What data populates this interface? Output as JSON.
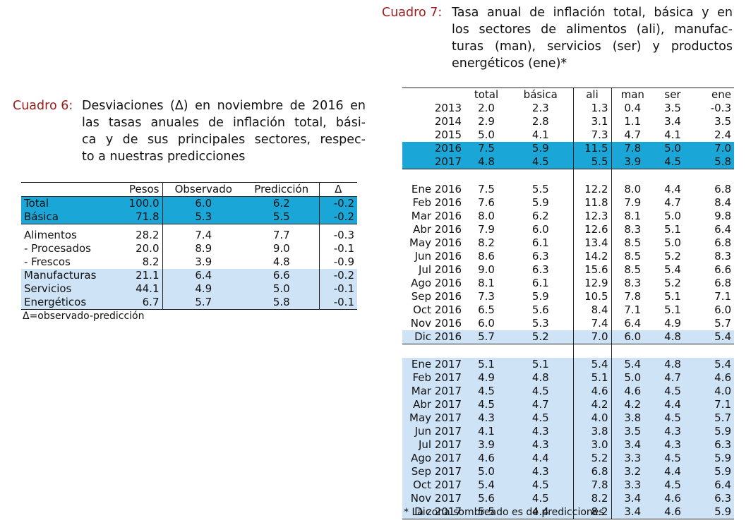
{
  "cuadro6": {
    "label": "Cuadro 6:",
    "title_lines": [
      "Desviaciones (Δ) en noviembre de 2016 en",
      "las tasas anuales de inflación total, bási-",
      "ca y de sus principales sectores, respec-",
      "to a nuestras predicciones"
    ],
    "headers": [
      "",
      "Pesos",
      "Observado",
      "Predicción",
      "Δ"
    ],
    "rows": [
      {
        "name": "Total",
        "cells": [
          "100.0",
          "6.0",
          "6.2",
          "-0.2"
        ],
        "shade": "dark"
      },
      {
        "name": "Básica",
        "cells": [
          "71.8",
          "5.3",
          "5.5",
          "-0.2"
        ],
        "shade": "dark"
      },
      {
        "name": "Alimentos",
        "cells": [
          "28.2",
          "7.4",
          "7.7",
          "-0.3"
        ],
        "shade": "none"
      },
      {
        "name": "- Procesados",
        "cells": [
          "20.0",
          "8.9",
          "9.0",
          "-0.1"
        ],
        "shade": "none"
      },
      {
        "name": "- Frescos",
        "cells": [
          "8.2",
          "3.9",
          "4.8",
          "-0.9"
        ],
        "shade": "none"
      },
      {
        "name": "Manufacturas",
        "cells": [
          "21.1",
          "6.4",
          "6.6",
          "-0.2"
        ],
        "shade": "light"
      },
      {
        "name": "Servicios",
        "cells": [
          "44.1",
          "4.9",
          "5.0",
          "-0.1"
        ],
        "shade": "light"
      },
      {
        "name": "Energéticos",
        "cells": [
          "6.7",
          "5.7",
          "5.8",
          "-0.1"
        ],
        "shade": "light"
      }
    ],
    "footnote": "Δ=observado-predicción"
  },
  "cuadro7": {
    "label": "Cuadro 7:",
    "title_lines": [
      "Tasa anual de inflación total, básica y en",
      "los sectores de alimentos (ali), manufac-",
      "turas (man), servicios (ser) y productos",
      "energéticos (ene)*"
    ],
    "headers": [
      "",
      "total",
      "básica",
      "ali",
      "man",
      "ser",
      "ene"
    ],
    "annual": [
      {
        "name": "2013",
        "cells": [
          "2.0",
          "2.3",
          "1.3",
          "0.4",
          "3.5",
          "-0.3"
        ],
        "shade": "none"
      },
      {
        "name": "2014",
        "cells": [
          "2.9",
          "2.8",
          "3.1",
          "1.1",
          "3.4",
          "3.5"
        ],
        "shade": "none"
      },
      {
        "name": "2015",
        "cells": [
          "5.0",
          "4.1",
          "7.3",
          "4.7",
          "4.1",
          "2.4"
        ],
        "shade": "none"
      },
      {
        "name": "2016",
        "cells": [
          "7.5",
          "5.9",
          "11.5",
          "7.8",
          "5.0",
          "7.0"
        ],
        "shade": "dark"
      },
      {
        "name": "2017",
        "cells": [
          "4.8",
          "4.5",
          "5.5",
          "3.9",
          "4.5",
          "5.8"
        ],
        "shade": "dark"
      }
    ],
    "monthly2016": [
      {
        "name": "Ene 2016",
        "cells": [
          "7.5",
          "5.5",
          "12.2",
          "8.0",
          "4.4",
          "6.8"
        ],
        "shade": "none"
      },
      {
        "name": "Feb 2016",
        "cells": [
          "7.6",
          "5.9",
          "11.8",
          "7.9",
          "4.7",
          "8.4"
        ],
        "shade": "none"
      },
      {
        "name": "Mar 2016",
        "cells": [
          "8.0",
          "6.2",
          "12.3",
          "8.1",
          "5.0",
          "9.8"
        ],
        "shade": "none"
      },
      {
        "name": "Abr 2016",
        "cells": [
          "7.9",
          "6.0",
          "12.6",
          "8.3",
          "5.1",
          "6.4"
        ],
        "shade": "none"
      },
      {
        "name": "May 2016",
        "cells": [
          "8.2",
          "6.1",
          "13.4",
          "8.5",
          "5.0",
          "6.8"
        ],
        "shade": "none"
      },
      {
        "name": "Jun 2016",
        "cells": [
          "8.6",
          "6.3",
          "14.2",
          "8.5",
          "5.2",
          "8.3"
        ],
        "shade": "none"
      },
      {
        "name": "Jul 2016",
        "cells": [
          "9.0",
          "6.3",
          "15.6",
          "8.5",
          "5.4",
          "6.6"
        ],
        "shade": "none"
      },
      {
        "name": "Ago 2016",
        "cells": [
          "8.1",
          "6.1",
          "12.9",
          "8.3",
          "5.2",
          "6.8"
        ],
        "shade": "none"
      },
      {
        "name": "Sep 2016",
        "cells": [
          "7.3",
          "5.9",
          "10.5",
          "7.8",
          "5.1",
          "7.1"
        ],
        "shade": "none"
      },
      {
        "name": "Oct 2016",
        "cells": [
          "6.5",
          "5.6",
          "8.4",
          "7.1",
          "5.1",
          "6.0"
        ],
        "shade": "none"
      },
      {
        "name": "Nov 2016",
        "cells": [
          "6.0",
          "5.3",
          "7.4",
          "6.4",
          "4.9",
          "5.7"
        ],
        "shade": "none"
      },
      {
        "name": "Dic 2016",
        "cells": [
          "5.7",
          "5.2",
          "7.0",
          "6.0",
          "4.8",
          "5.4"
        ],
        "shade": "light"
      }
    ],
    "monthly2017": [
      {
        "name": "Ene 2017",
        "cells": [
          "5.1",
          "5.1",
          "5.4",
          "5.4",
          "4.8",
          "5.4"
        ],
        "shade": "light"
      },
      {
        "name": "Feb 2017",
        "cells": [
          "4.9",
          "4.8",
          "5.1",
          "5.0",
          "4.7",
          "4.6"
        ],
        "shade": "light"
      },
      {
        "name": "Mar 2017",
        "cells": [
          "4.5",
          "4.5",
          "4.6",
          "4.6",
          "4.5",
          "4.0"
        ],
        "shade": "light"
      },
      {
        "name": "Abr 2017",
        "cells": [
          "4.5",
          "4.7",
          "4.2",
          "4.2",
          "4.4",
          "7.1"
        ],
        "shade": "light"
      },
      {
        "name": "May 2017",
        "cells": [
          "4.3",
          "4.5",
          "4.0",
          "3.8",
          "4.5",
          "5.7"
        ],
        "shade": "light"
      },
      {
        "name": "Jun 2017",
        "cells": [
          "4.1",
          "4.3",
          "3.8",
          "3.5",
          "4.3",
          "5.9"
        ],
        "shade": "light"
      },
      {
        "name": "Jul 2017",
        "cells": [
          "3.9",
          "4.3",
          "3.0",
          "3.4",
          "4.3",
          "6.3"
        ],
        "shade": "light"
      },
      {
        "name": "Ago 2017",
        "cells": [
          "4.6",
          "4.4",
          "5.2",
          "3.3",
          "4.5",
          "5.9"
        ],
        "shade": "light"
      },
      {
        "name": "Sep 2017",
        "cells": [
          "5.0",
          "4.3",
          "6.8",
          "3.2",
          "4.4",
          "5.9"
        ],
        "shade": "light"
      },
      {
        "name": "Oct 2017",
        "cells": [
          "5.4",
          "4.5",
          "7.8",
          "3.3",
          "4.5",
          "6.4"
        ],
        "shade": "light"
      },
      {
        "name": "Nov 2017",
        "cells": [
          "5.6",
          "4.5",
          "8.2",
          "3.4",
          "4.6",
          "6.3"
        ],
        "shade": "light"
      },
      {
        "name": "Dic 2017",
        "cells": [
          "5.5",
          "4.4",
          "8.2",
          "3.4",
          "4.6",
          "5.9"
        ],
        "shade": "light"
      }
    ],
    "footnote": "* La zona sombreado es de predicciones"
  },
  "colors": {
    "label": "#9b1b1b",
    "dark_shade": "#1aa7d8",
    "light_shade": "#cfe3f6"
  }
}
